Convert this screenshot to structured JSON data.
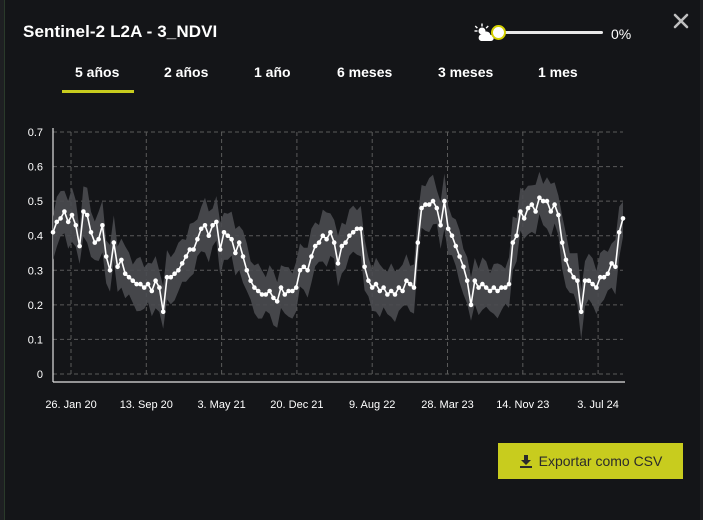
{
  "header": {
    "title": "Sentinel-2 L2A - 3_NDVI",
    "opacity_value": "0%"
  },
  "tabs": [
    {
      "label": "5 años",
      "active": true
    },
    {
      "label": "2 años"
    },
    {
      "label": "1 año"
    },
    {
      "label": "6 meses"
    },
    {
      "label": "3 meses"
    },
    {
      "label": "1 mes"
    }
  ],
  "export": {
    "label": "Exportar como CSV"
  },
  "colors": {
    "accent": "#c8cc1e",
    "band": "#4a4b50",
    "line": "#ffffff"
  },
  "chart_data": {
    "type": "line",
    "x_tick_labels": [
      "26. Jan 20",
      "13. Sep 20",
      "3. May 21",
      "20. Dec 21",
      "9. Aug 22",
      "28. Mar 23",
      "14. Nov 23",
      "3. Jul 24"
    ],
    "y_ticks": [
      0,
      0.1,
      0.2,
      0.3,
      0.4,
      0.5,
      0.6,
      0.7
    ],
    "ylim": [
      0,
      0.7
    ],
    "grid": true,
    "series": [
      {
        "values": [
          0.41,
          0.44,
          0.45,
          0.47,
          0.44,
          0.46,
          0.43,
          0.37,
          0.47,
          0.46,
          0.41,
          0.38,
          0.39,
          0.43,
          0.34,
          0.3,
          0.38,
          0.31,
          0.33,
          0.29,
          0.28,
          0.27,
          0.26,
          0.26,
          0.25,
          0.26,
          0.24,
          0.27,
          0.25,
          0.18,
          0.28,
          0.28,
          0.29,
          0.3,
          0.32,
          0.34,
          0.36,
          0.36,
          0.39,
          0.42,
          0.43,
          0.4,
          0.43,
          0.44,
          0.36,
          0.41,
          0.4,
          0.39,
          0.35,
          0.38,
          0.34,
          0.3,
          0.27,
          0.25,
          0.24,
          0.23,
          0.23,
          0.24,
          0.22,
          0.21,
          0.25,
          0.23,
          0.24,
          0.24,
          0.25,
          0.3,
          0.31,
          0.3,
          0.34,
          0.37,
          0.38,
          0.4,
          0.39,
          0.41,
          0.38,
          0.32,
          0.37,
          0.38,
          0.4,
          0.41,
          0.42,
          0.42,
          0.31,
          0.27,
          0.25,
          0.26,
          0.24,
          0.25,
          0.23,
          0.24,
          0.23,
          0.25,
          0.24,
          0.27,
          0.26,
          0.25,
          0.38,
          0.48,
          0.49,
          0.49,
          0.5,
          0.48,
          0.43,
          0.5,
          0.42,
          0.4,
          0.37,
          0.34,
          0.31,
          0.27,
          0.2,
          0.27,
          0.25,
          0.26,
          0.25,
          0.24,
          0.25,
          0.24,
          0.25,
          0.25,
          0.26,
          0.38,
          0.4,
          0.47,
          0.45,
          0.48,
          0.49,
          0.47,
          0.51,
          0.5,
          0.5,
          0.47,
          0.49,
          0.46,
          0.38,
          0.33,
          0.3,
          0.28,
          0.27,
          0.18,
          0.27,
          0.27,
          0.26,
          0.25,
          0.28,
          0.28,
          0.29,
          0.32,
          0.31,
          0.41,
          0.45
        ]
      }
    ]
  }
}
